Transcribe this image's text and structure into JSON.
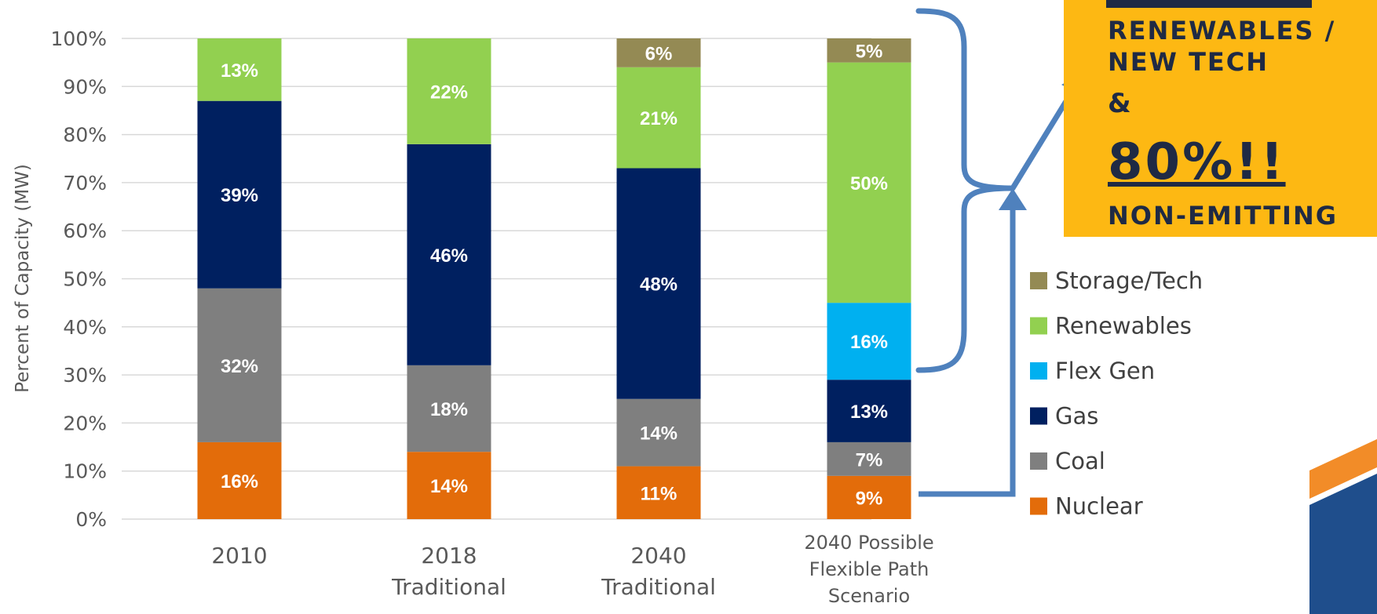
{
  "chart_data": {
    "type": "bar",
    "stacked": true,
    "ylabel": "Percent of Capacity (MW)",
    "ylim": [
      0,
      100
    ],
    "yticks": [
      "0%",
      "10%",
      "20%",
      "30%",
      "40%",
      "50%",
      "60%",
      "70%",
      "80%",
      "90%",
      "100%"
    ],
    "grid": true,
    "legend_position": "right",
    "categories": [
      [
        "2010"
      ],
      [
        "2018",
        "Traditional"
      ],
      [
        "2040",
        "Traditional"
      ],
      [
        "2040 Possible",
        "Flexible Path",
        "Scenario"
      ]
    ],
    "series": [
      {
        "name": "Nuclear",
        "color": "#E36C0A",
        "values": [
          16,
          14,
          11,
          9
        ],
        "labels": [
          "16%",
          "14%",
          "11%",
          "9%"
        ]
      },
      {
        "name": "Coal",
        "color": "#7F7F7F",
        "values": [
          32,
          18,
          14,
          7
        ],
        "labels": [
          "32%",
          "18%",
          "14%",
          "7%"
        ]
      },
      {
        "name": "Gas",
        "color": "#002060",
        "values": [
          39,
          46,
          48,
          13
        ],
        "labels": [
          "39%",
          "46%",
          "48%",
          "13%"
        ]
      },
      {
        "name": "Flex Gen",
        "color": "#00B0F0",
        "values": [
          0,
          0,
          0,
          16
        ],
        "labels": [
          "",
          "",
          "",
          "16%"
        ]
      },
      {
        "name": "Renewables",
        "color": "#92D050",
        "values": [
          13,
          22,
          21,
          50
        ],
        "labels": [
          "13%",
          "22%",
          "21%",
          "50%"
        ]
      },
      {
        "name": "Storage/Tech",
        "color": "#948A54",
        "values": [
          0,
          0,
          6,
          5
        ],
        "labels": [
          "",
          "",
          "6%",
          "5%"
        ]
      }
    ]
  },
  "callout": {
    "line1": "RENEWABLES /",
    "line2": "NEW TECH",
    "line3": "&",
    "line4": "80%!!",
    "line5": "NON-EMITTING",
    "background": "#FDB813",
    "text_color": "#1F2A44"
  },
  "annotation": {
    "bracket_color": "#4F81BD"
  }
}
